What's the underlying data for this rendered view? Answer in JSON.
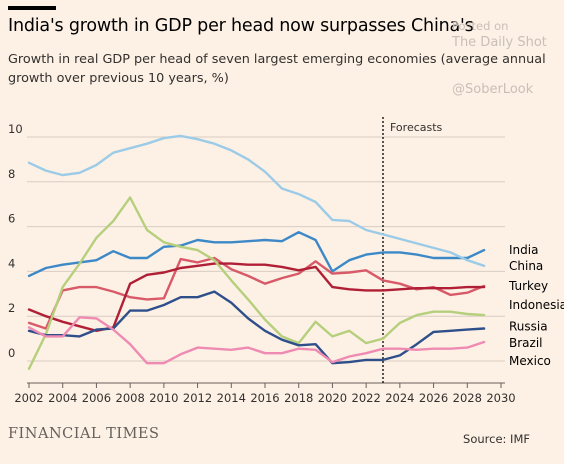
{
  "title": "India's growth in GDP per head now surpasses China's",
  "subtitle": "Growth in real GDP per head of seven largest emerging economies (average annual growth over previous 10 years, %)",
  "watermark": {
    "line1": "Posted on",
    "line2": "The Daily Shot",
    "line3": "@SoberLook"
  },
  "brand": "FINANCIAL TIMES",
  "source": "Source: IMF",
  "colors": {
    "background": "#fdf1e5",
    "grid": "#d9cdc3",
    "forecast_line": "#000000"
  },
  "chart_data": {
    "type": "line",
    "xlim": [
      2002,
      2030
    ],
    "ylim": [
      -1,
      10
    ],
    "x_ticks": [
      "2002",
      "2004",
      "2006",
      "2008",
      "2010",
      "2012",
      "2014",
      "2016",
      "2018",
      "2020",
      "2022",
      "2024",
      "2026",
      "2028",
      "2030"
    ],
    "y_ticks": [
      "0",
      "2",
      "4",
      "6",
      "8",
      "10"
    ],
    "forecast_start": 2023,
    "forecast_label": "Forecasts",
    "grid": true,
    "x": [
      2002,
      2003,
      2004,
      2005,
      2006,
      2007,
      2008,
      2009,
      2010,
      2011,
      2012,
      2013,
      2014,
      2015,
      2016,
      2017,
      2018,
      2019,
      2020,
      2021,
      2022,
      2023,
      2024,
      2025,
      2026,
      2027,
      2028,
      2029
    ],
    "series": [
      {
        "name": "India",
        "color": "#3d89c8",
        "values": [
          3.8,
          4.15,
          4.3,
          4.4,
          4.5,
          4.9,
          4.6,
          4.6,
          5.1,
          5.15,
          5.4,
          5.3,
          5.3,
          5.35,
          5.4,
          5.35,
          5.75,
          5.4,
          4.0,
          4.5,
          4.75,
          4.85,
          4.85,
          4.75,
          4.6,
          4.6,
          4.6,
          4.95
        ]
      },
      {
        "name": "China",
        "color": "#9ccbe8",
        "values": [
          8.85,
          8.5,
          8.3,
          8.4,
          8.75,
          9.3,
          9.5,
          9.7,
          9.95,
          10.05,
          9.9,
          9.7,
          9.4,
          9.0,
          8.45,
          7.7,
          7.45,
          7.1,
          6.3,
          6.25,
          5.85,
          5.65,
          5.45,
          5.25,
          5.05,
          4.85,
          4.5,
          4.25
        ]
      },
      {
        "name": "Turkey",
        "color": "#d85a69",
        "values": [
          1.7,
          1.45,
          3.15,
          3.3,
          3.3,
          3.1,
          2.85,
          2.75,
          2.8,
          4.55,
          4.4,
          4.6,
          4.1,
          3.8,
          3.45,
          3.7,
          3.9,
          4.45,
          3.9,
          3.95,
          4.05,
          3.6,
          3.45,
          3.2,
          3.3,
          2.95,
          3.05,
          3.35
        ]
      },
      {
        "name": "Indonesia",
        "color": "#b01f35",
        "values": [
          2.3,
          2.0,
          1.75,
          1.55,
          1.35,
          1.5,
          3.45,
          3.85,
          3.95,
          4.15,
          4.25,
          4.35,
          4.35,
          4.3,
          4.3,
          4.2,
          4.05,
          4.2,
          3.3,
          3.2,
          3.15,
          3.15,
          3.2,
          3.25,
          3.25,
          3.25,
          3.3,
          3.3
        ]
      },
      {
        "name": "Russia",
        "color": "#b6cf7d",
        "values": [
          -0.35,
          1.2,
          3.3,
          4.35,
          5.5,
          6.25,
          7.3,
          5.85,
          5.3,
          5.1,
          4.95,
          4.5,
          3.6,
          2.75,
          1.85,
          1.1,
          0.8,
          1.75,
          1.1,
          1.35,
          0.8,
          1.0,
          1.7,
          2.05,
          2.2,
          2.2,
          2.1,
          2.05
        ]
      },
      {
        "name": "Brazil",
        "color": "#2f4f8b",
        "values": [
          1.35,
          1.15,
          1.15,
          1.1,
          1.4,
          1.45,
          2.25,
          2.25,
          2.5,
          2.85,
          2.85,
          3.1,
          2.6,
          1.9,
          1.35,
          0.95,
          0.7,
          0.75,
          -0.1,
          -0.05,
          0.05,
          0.05,
          0.25,
          0.75,
          1.3,
          1.35,
          1.4,
          1.45
        ]
      },
      {
        "name": "Mexico",
        "color": "#ef8bb2",
        "values": [
          1.5,
          1.1,
          1.1,
          1.95,
          1.9,
          1.4,
          0.75,
          -0.1,
          -0.1,
          0.3,
          0.6,
          0.55,
          0.5,
          0.6,
          0.35,
          0.35,
          0.55,
          0.5,
          -0.05,
          0.2,
          0.35,
          0.55,
          0.55,
          0.5,
          0.55,
          0.55,
          0.6,
          0.85
        ]
      }
    ],
    "labels": [
      {
        "name": "India",
        "y": 4.95
      },
      {
        "name": "China",
        "y": 4.25
      },
      {
        "name": "Turkey",
        "y": 3.35
      },
      {
        "name": "Indonesia",
        "y": 2.5
      },
      {
        "name": "Russia",
        "y": 1.55
      },
      {
        "name": "Brazil",
        "y": 0.8
      },
      {
        "name": "Mexico",
        "y": 0.0
      }
    ]
  }
}
